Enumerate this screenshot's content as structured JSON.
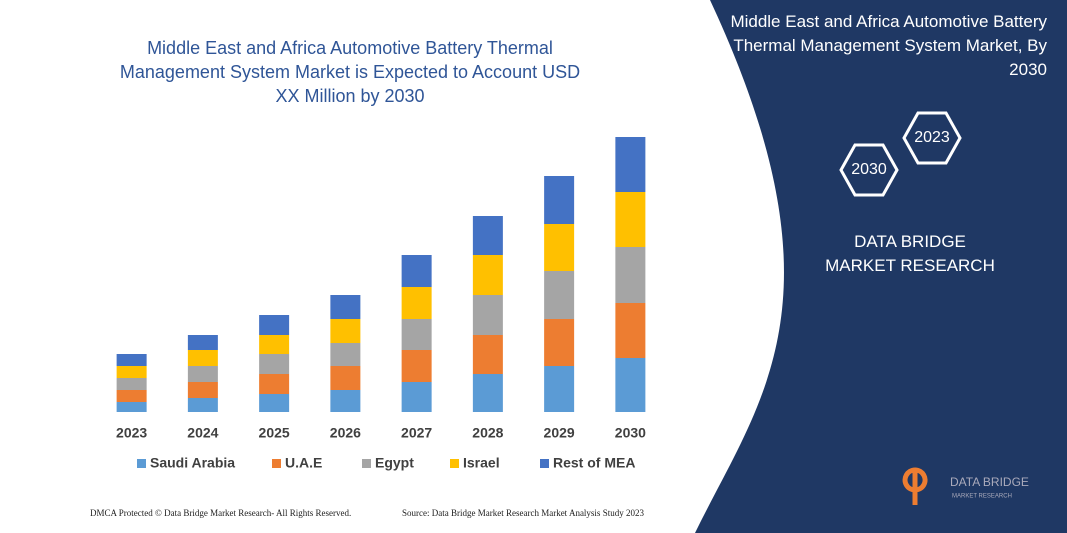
{
  "chart_data": {
    "type": "stacked-bar",
    "title": "Middle East and Africa Automotive Battery Thermal Management System Market is Expected to Account USD XX Million by 2030",
    "categories": [
      "2023",
      "2024",
      "2025",
      "2026",
      "2027",
      "2028",
      "2029",
      "2030"
    ],
    "series": [
      {
        "name": "Saudi Arabia",
        "color": "#5b9bd5",
        "values": [
          10,
          14,
          18,
          22,
          30,
          38,
          46,
          54
        ]
      },
      {
        "name": "U.A.E",
        "color": "#ed7d31",
        "values": [
          12,
          16,
          20,
          24,
          32,
          39,
          47,
          55
        ]
      },
      {
        "name": "Egypt",
        "color": "#a5a5a5",
        "values": [
          12,
          16,
          20,
          23,
          31,
          40,
          48,
          56
        ]
      },
      {
        "name": "Israel",
        "color": "#ffc000",
        "values": [
          12,
          16,
          19,
          24,
          32,
          40,
          47,
          55
        ]
      },
      {
        "name": "Rest of MEA",
        "color": "#4472c4",
        "values": [
          12,
          15,
          20,
          24,
          32,
          39,
          48,
          55
        ]
      }
    ],
    "ylim": [
      0,
      275
    ]
  },
  "panel": {
    "title": "Middle East and Africa Automotive Battery Thermal Management System Market, By 2030",
    "hexagons": [
      "2023",
      "2030"
    ],
    "brand": "DATA BRIDGE MARKET RESEARCH"
  },
  "logo": {
    "name": "DATA BRIDGE",
    "tagline": "MARKET RESEARCH"
  },
  "footer": {
    "left": "DMCA Protected © Data Bridge Market Research- All Rights Reserved.",
    "right": "Source: Data Bridge Market Research Market Analysis Study 2023"
  }
}
